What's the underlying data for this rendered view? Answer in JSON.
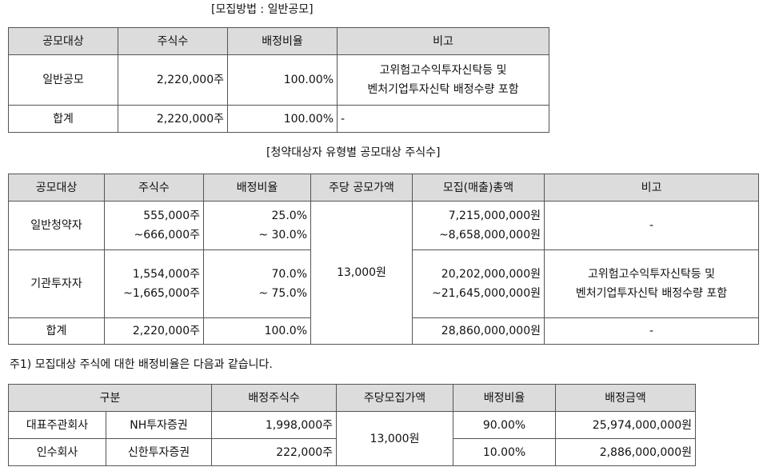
{
  "caption1": "[모집방법 : 일반공모]",
  "table1": {
    "headers": [
      "공모대상",
      "주식수",
      "배정비율",
      "비고"
    ],
    "rows": [
      {
        "target": "일반공모",
        "shares": "2,220,000주",
        "ratio": "100.00%",
        "note_line1": "고위험고수익투자신탁등 및",
        "note_line2": "벤처기업투자신탁 배정수량 포함"
      },
      {
        "target": "합계",
        "shares": "2,220,000주",
        "ratio": "100.00%",
        "note": "-"
      }
    ]
  },
  "caption2": "[청약대상자 유형별 공모대상 주식수]",
  "table2": {
    "headers": [
      "공모대상",
      "주식수",
      "배정비율",
      "주당 공모가액",
      "모집(매출)총액",
      "비고"
    ],
    "price": "13,000원",
    "rows": [
      {
        "target": "일반청약자",
        "shares_line1": "555,000주",
        "shares_line2": "~666,000주",
        "ratio_line1": "25.0%",
        "ratio_line2": "~ 30.0%",
        "total_line1": "7,215,000,000원",
        "total_line2": "~8,658,000,000원",
        "note": "-"
      },
      {
        "target": "기관투자자",
        "shares_line1": "1,554,000주",
        "shares_line2": "~1,665,000주",
        "ratio_line1": "70.0%",
        "ratio_line2": "~ 75.0%",
        "total_line1": "20,202,000,000원",
        "total_line2": "~21,645,000,000원",
        "note_line1": "고위험고수익투자신탁등 및",
        "note_line2": "벤처기업투자신탁 배정수량 포함"
      },
      {
        "target": "합계",
        "shares": "2,220,000주",
        "ratio": "100.0%",
        "total": "28,860,000,000원",
        "note": "-"
      }
    ]
  },
  "note1": "주1) 모집대상 주식에 대한 배정비율은 다음과 같습니다.",
  "table3": {
    "headers": [
      "구분",
      "배정주식수",
      "주당모집가액",
      "배정비율",
      "배정금액"
    ],
    "price": "13,000원",
    "rows": [
      {
        "role": "대표주관회사",
        "company": "NH투자증권",
        "shares": "1,998,000주",
        "ratio": "90.00%",
        "amount": "25,974,000,000원"
      },
      {
        "role": "인수회사",
        "company": "신한투자증권",
        "shares": "222,000주",
        "ratio": "10.00%",
        "amount": "2,886,000,000원"
      }
    ]
  }
}
